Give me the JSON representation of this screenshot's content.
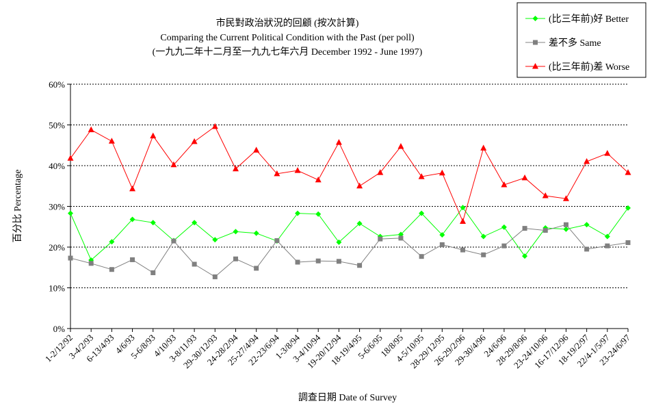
{
  "colors": {
    "better": "#00ff00",
    "same": "#808080",
    "worse": "#ff0000",
    "grid": "#000000"
  },
  "chart_data": {
    "type": "line",
    "title": "市民對政治狀況的回顧 (按次計算)",
    "subtitle": "Comparing the Current Political Condition with the Past  (per poll)",
    "subtitle2": "(一九九二年十二月至一九九七年六月 December 1992 - June 1997)",
    "xlabel": "調查日期 Date of Survey",
    "ylabel": "百分比 Percentage",
    "ylim": [
      0,
      60
    ],
    "yticks": [
      "0%",
      "10%",
      "20%",
      "30%",
      "40%",
      "50%",
      "60%"
    ],
    "grid": true,
    "legend_position": "top-right",
    "categories": [
      "1-2/12/92",
      "3-4/2/93",
      "6-13/4/93",
      "4/6/93",
      "5-6/8/93",
      "4/10/93",
      "3-8/11/93",
      "29-30/12/93",
      "24-28/2/94",
      "25-27/4/94",
      "22-23/6/94",
      "1-3/8/94",
      "3-4/10/94",
      "19-20/12/94",
      "18-19/4/95",
      "5-6/6/95",
      "18/8/95",
      "4-5/10/95",
      "28-29/12/95",
      "26-29/2/96",
      "29-30/4/96",
      "24/6/96",
      "28-29/8/96",
      "23-24/10/96",
      "16-17/12/96",
      "18-19/2/97",
      "22/4-1/5/97",
      "23-24/6/97"
    ],
    "series": [
      {
        "name": "(比三年前)好 Better",
        "key": "better",
        "marker": "diamond",
        "values": [
          28.3,
          16.8,
          21.3,
          26.8,
          26.0,
          21.6,
          26.0,
          21.8,
          23.8,
          23.4,
          21.5,
          28.3,
          28.1,
          21.2,
          25.8,
          22.6,
          23.1,
          28.3,
          23.0,
          29.7,
          22.6,
          24.9,
          17.8,
          24.7,
          24.4,
          25.5,
          22.6,
          29.6
        ]
      },
      {
        "name": "差不多 Same",
        "key": "same",
        "marker": "square",
        "values": [
          17.3,
          16.0,
          14.5,
          16.9,
          13.7,
          21.5,
          15.8,
          12.7,
          17.1,
          14.8,
          21.6,
          16.3,
          16.6,
          16.5,
          15.5,
          22.0,
          22.2,
          17.7,
          20.6,
          19.3,
          18.1,
          20.3,
          24.6,
          24.1,
          25.5,
          19.5,
          20.3,
          21.1
        ]
      },
      {
        "name": "(比三年前)差 Worse",
        "key": "worse",
        "marker": "triangle",
        "values": [
          41.8,
          48.8,
          46.0,
          34.3,
          47.3,
          40.2,
          45.9,
          49.6,
          39.2,
          43.8,
          38.0,
          38.8,
          36.5,
          45.7,
          35.0,
          38.3,
          44.7,
          37.3,
          38.2,
          26.3,
          44.3,
          35.3,
          37.0,
          32.6,
          31.9,
          41.0,
          43.0,
          38.3
        ]
      }
    ]
  }
}
